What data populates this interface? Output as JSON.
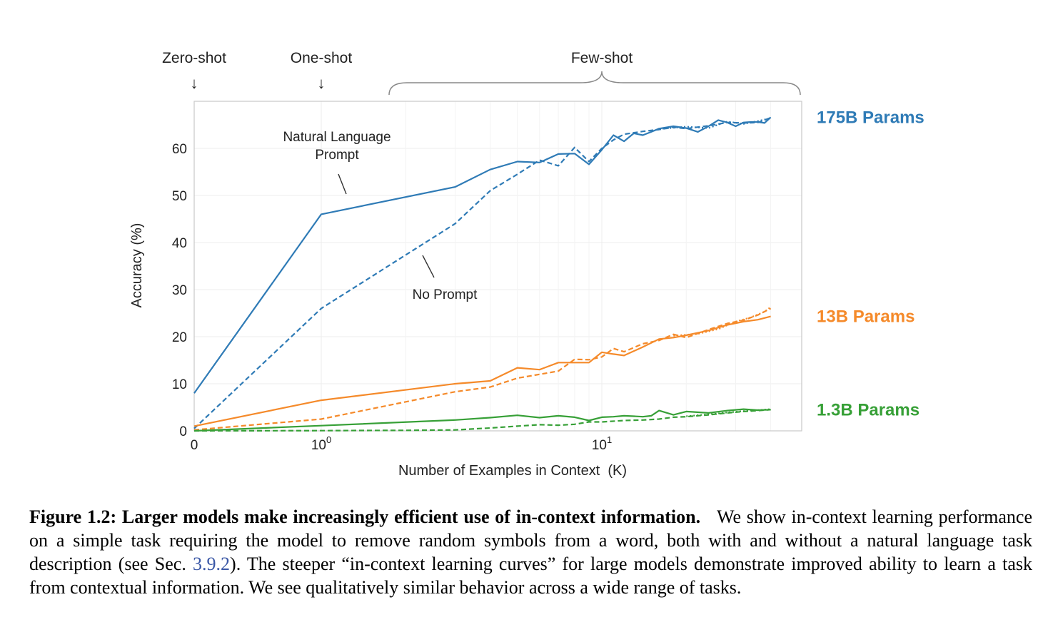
{
  "chart_data": {
    "type": "line",
    "xlabel": "Number of Examples in Context  (K)",
    "ylabel": "Accuracy (%)",
    "x_scale": "symlog",
    "xlim": [
      0,
      40
    ],
    "ylim": [
      0,
      70
    ],
    "y_ticks": [
      0,
      10,
      20,
      30,
      40,
      50,
      60
    ],
    "x_ticks": [
      {
        "value": 0,
        "base": "0",
        "exp": ""
      },
      {
        "value": 1,
        "base": "10",
        "exp": "0"
      },
      {
        "value": 10,
        "base": "10",
        "exp": "1"
      }
    ],
    "grid": true,
    "regime_labels": [
      {
        "text": "Zero-shot",
        "arrow": "↓"
      },
      {
        "text": "One-shot",
        "arrow": "↓"
      },
      {
        "text": "Few-shot"
      }
    ],
    "annotations": [
      {
        "text_lines": [
          "Natural Language",
          "Prompt"
        ]
      },
      {
        "text_lines": [
          "No Prompt"
        ]
      }
    ],
    "series": [
      {
        "name": "175B Params",
        "color": "#2f7bb6",
        "style": "solid",
        "x": [
          0,
          1,
          3,
          4,
          5,
          6,
          7,
          8,
          9,
          10,
          11,
          12,
          13,
          14,
          15,
          16,
          18,
          20,
          22,
          24,
          26,
          28,
          30,
          32,
          34,
          36,
          38,
          40
        ],
        "y": [
          8,
          46,
          51.8,
          55.5,
          57.2,
          57,
          58.8,
          58.9,
          56.6,
          59.7,
          62.8,
          61.5,
          63.2,
          62.8,
          63.5,
          64.2,
          64.7,
          64.3,
          63.5,
          64.7,
          66,
          65.5,
          64.7,
          65.5,
          65.6,
          65.6,
          65.4,
          66.6
        ]
      },
      {
        "name": "",
        "color": "#2f7bb6",
        "style": "dashed",
        "x": [
          0,
          1,
          3,
          4,
          5,
          6,
          7,
          8,
          9,
          10,
          11,
          12,
          14,
          16,
          18,
          20,
          24,
          28,
          32,
          36,
          40
        ],
        "y": [
          0.5,
          26,
          44,
          51,
          54.5,
          57.5,
          56.3,
          60.2,
          57.2,
          60,
          61.8,
          63,
          63.6,
          64,
          64.5,
          64.2,
          64.8,
          65.5,
          65.4,
          65.5,
          66.5
        ]
      },
      {
        "name": "",
        "color": "#2f7bb6",
        "style": "dotted",
        "x": [
          16,
          20,
          24,
          28,
          32,
          36,
          40
        ],
        "y": [
          64.1,
          64.6,
          64.3,
          65.7,
          65.2,
          65.8,
          66.4
        ]
      },
      {
        "name": "13B Params",
        "color": "#f58a2a",
        "style": "solid",
        "x": [
          0,
          1,
          3,
          4,
          5,
          6,
          7,
          8,
          9,
          10,
          11,
          12,
          14,
          16,
          18,
          20,
          24,
          28,
          32,
          36,
          40
        ],
        "y": [
          1,
          6.5,
          10,
          10.6,
          13.4,
          13,
          14.5,
          14.5,
          14.5,
          16.7,
          16.3,
          16,
          17.8,
          19.5,
          19.8,
          20.3,
          21.3,
          22.5,
          23.2,
          23.6,
          24.3
        ]
      },
      {
        "name": "",
        "color": "#f58a2a",
        "style": "dashed",
        "x": [
          0,
          1,
          3,
          4,
          5,
          6,
          7,
          8,
          9,
          10,
          11,
          12,
          14,
          16,
          18,
          20,
          24,
          28,
          32,
          36,
          40
        ],
        "y": [
          0.2,
          2.5,
          8.3,
          9.3,
          11.2,
          12,
          12.7,
          15.2,
          15.1,
          15.7,
          17.5,
          16.8,
          18.5,
          19.2,
          20.5,
          19.8,
          21.5,
          22.8,
          23.5,
          24.6,
          26
        ]
      },
      {
        "name": "",
        "color": "#f58a2a",
        "style": "dotted",
        "x": [
          18,
          22,
          26,
          30,
          34,
          38,
          40
        ],
        "y": [
          20.2,
          20.6,
          21.6,
          23.2,
          24.1,
          25.3,
          26.3
        ]
      },
      {
        "name": "1.3B Params",
        "color": "#37a037",
        "style": "solid",
        "x": [
          0,
          1,
          3,
          4,
          5,
          6,
          7,
          8,
          9,
          10,
          11,
          12,
          13,
          14,
          15,
          16,
          18,
          20,
          24,
          28,
          32,
          36,
          40
        ],
        "y": [
          0,
          1.1,
          2.3,
          2.8,
          3.3,
          2.8,
          3.2,
          2.9,
          2.2,
          2.9,
          3,
          3.2,
          3.1,
          3,
          3.2,
          4.3,
          3.4,
          4.1,
          3.8,
          4.3,
          4.6,
          4.4,
          4.5
        ]
      },
      {
        "name": "",
        "color": "#37a037",
        "style": "dashed",
        "x": [
          0,
          1,
          2,
          3,
          4,
          5,
          6,
          7,
          8,
          9,
          10,
          12,
          14,
          16,
          18,
          20,
          24,
          28,
          32,
          36,
          40
        ],
        "y": [
          0,
          0.05,
          0.1,
          0.2,
          0.6,
          1,
          1.3,
          1.2,
          1.4,
          1.9,
          1.9,
          2.2,
          2.3,
          2.5,
          2.9,
          3,
          3.4,
          3.8,
          4.1,
          4.3,
          4.5
        ]
      },
      {
        "name": "",
        "color": "#37a037",
        "style": "dotted",
        "x": [
          20,
          24,
          28,
          32,
          36,
          40
        ],
        "y": [
          3.1,
          3.5,
          3.9,
          4.2,
          4.4,
          4.6
        ]
      }
    ]
  },
  "caption": {
    "lead": "Figure 1.2: Larger models make increasingly efficient use of in-context information.",
    "part1": "We show in-context learning performance on a simple task requiring the model to remove random symbols from a word, both with and without a natural language task description (see Sec.",
    "ref": "3.9.2",
    "part2": "). The steeper “in-context learning curves” for large models demonstrate improved ability to learn a task from contextual information. We see qualitatively similar behavior across a wide range of tasks."
  }
}
